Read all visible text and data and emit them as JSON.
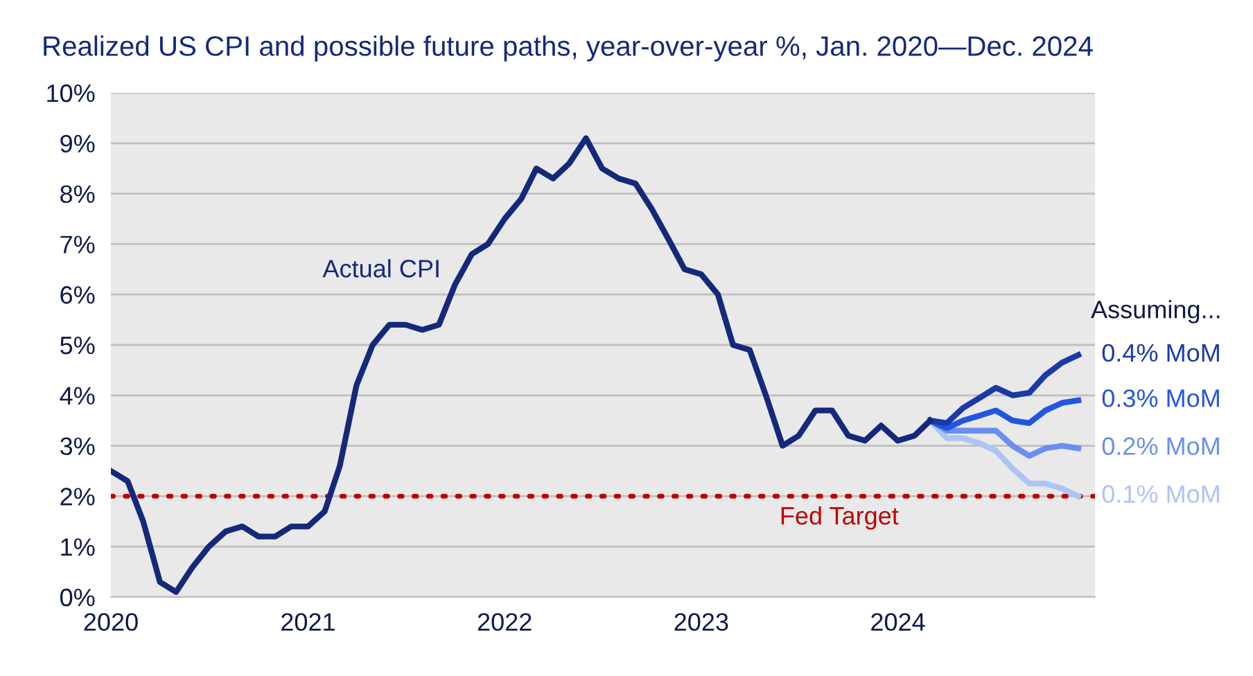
{
  "chart_data": {
    "type": "line",
    "title": "Realized US CPI and possible future paths, year-over-year %, Jan. 2020—Dec. 2024",
    "series": [
      {
        "name": "Actual CPI",
        "color": "#14297a",
        "x": [
          "2020-01",
          "2020-02",
          "2020-03",
          "2020-04",
          "2020-05",
          "2020-06",
          "2020-07",
          "2020-08",
          "2020-09",
          "2020-10",
          "2020-11",
          "2020-12",
          "2021-01",
          "2021-02",
          "2021-03",
          "2021-04",
          "2021-05",
          "2021-06",
          "2021-07",
          "2021-08",
          "2021-09",
          "2021-10",
          "2021-11",
          "2021-12",
          "2022-01",
          "2022-02",
          "2022-03",
          "2022-04",
          "2022-05",
          "2022-06",
          "2022-07",
          "2022-08",
          "2022-09",
          "2022-10",
          "2022-11",
          "2022-12",
          "2023-01",
          "2023-02",
          "2023-03",
          "2023-04",
          "2023-05",
          "2023-06",
          "2023-07",
          "2023-08",
          "2023-09",
          "2023-10",
          "2023-11",
          "2023-12",
          "2024-01",
          "2024-02",
          "2024-03"
        ],
        "values": [
          2.5,
          2.3,
          1.5,
          0.3,
          0.1,
          0.6,
          1.0,
          1.3,
          1.4,
          1.2,
          1.2,
          1.4,
          1.4,
          1.7,
          2.6,
          4.2,
          5.0,
          5.4,
          5.4,
          5.3,
          5.4,
          6.2,
          6.8,
          7.0,
          7.5,
          7.9,
          8.5,
          8.3,
          8.6,
          9.1,
          8.5,
          8.3,
          8.2,
          7.7,
          7.1,
          6.5,
          6.4,
          6.0,
          5.0,
          4.9,
          4.0,
          3.0,
          3.2,
          3.7,
          3.7,
          3.2,
          3.1,
          3.4,
          3.1,
          3.2,
          3.5
        ]
      },
      {
        "name": "0.4% MoM",
        "color": "#1a3aa8",
        "x": [
          "2024-03",
          "2024-04",
          "2024-05",
          "2024-06",
          "2024-07",
          "2024-08",
          "2024-09",
          "2024-10",
          "2024-11",
          "2024-12"
        ],
        "values": [
          3.5,
          3.45,
          3.75,
          3.95,
          4.15,
          4.0,
          4.05,
          4.4,
          4.65,
          4.8
        ]
      },
      {
        "name": "0.3% MoM",
        "color": "#2356e0",
        "x": [
          "2024-03",
          "2024-04",
          "2024-05",
          "2024-06",
          "2024-07",
          "2024-08",
          "2024-09",
          "2024-10",
          "2024-11",
          "2024-12"
        ],
        "values": [
          3.5,
          3.35,
          3.5,
          3.6,
          3.7,
          3.5,
          3.45,
          3.7,
          3.85,
          3.9
        ]
      },
      {
        "name": "0.2% MoM",
        "color": "#6a8ff0",
        "x": [
          "2024-03",
          "2024-04",
          "2024-05",
          "2024-06",
          "2024-07",
          "2024-08",
          "2024-09",
          "2024-10",
          "2024-11",
          "2024-12"
        ],
        "values": [
          3.5,
          3.3,
          3.3,
          3.3,
          3.3,
          3.0,
          2.8,
          2.95,
          3.0,
          2.95
        ]
      },
      {
        "name": "0.1% MoM",
        "color": "#aec3f6",
        "x": [
          "2024-03",
          "2024-04",
          "2024-05",
          "2024-06",
          "2024-07",
          "2024-08",
          "2024-09",
          "2024-10",
          "2024-11",
          "2024-12"
        ],
        "values": [
          3.5,
          3.15,
          3.15,
          3.05,
          2.9,
          2.55,
          2.25,
          2.25,
          2.15,
          2.0
        ]
      }
    ],
    "annotations": [
      "Assuming..."
    ],
    "ref_lines": [
      {
        "axis": "y",
        "value": 2,
        "label": "Fed Target",
        "color": "#c00000",
        "line_style": "dotted"
      }
    ],
    "xlim": [
      "2020-01",
      "2025-01"
    ],
    "xticks": [
      {
        "value": "2020-01",
        "label": "2020"
      },
      {
        "value": "2021-01",
        "label": "2021"
      },
      {
        "value": "2022-01",
        "label": "2022"
      },
      {
        "value": "2023-01",
        "label": "2023"
      },
      {
        "value": "2024-01",
        "label": "2024"
      }
    ],
    "ylim": [
      0,
      10
    ],
    "yticks": [
      {
        "value": 0,
        "label": "0%"
      },
      {
        "value": 1,
        "label": "1%"
      },
      {
        "value": 2,
        "label": "2%"
      },
      {
        "value": 3,
        "label": "3%"
      },
      {
        "value": 4,
        "label": "4%"
      },
      {
        "value": 5,
        "label": "5%"
      },
      {
        "value": 6,
        "label": "6%"
      },
      {
        "value": 7,
        "label": "7%"
      },
      {
        "value": 8,
        "label": "8%"
      },
      {
        "value": 9,
        "label": "9%"
      },
      {
        "value": 10,
        "label": "10%"
      }
    ],
    "grid": "y",
    "legend": false,
    "marker": "none",
    "line_style": "solid"
  }
}
